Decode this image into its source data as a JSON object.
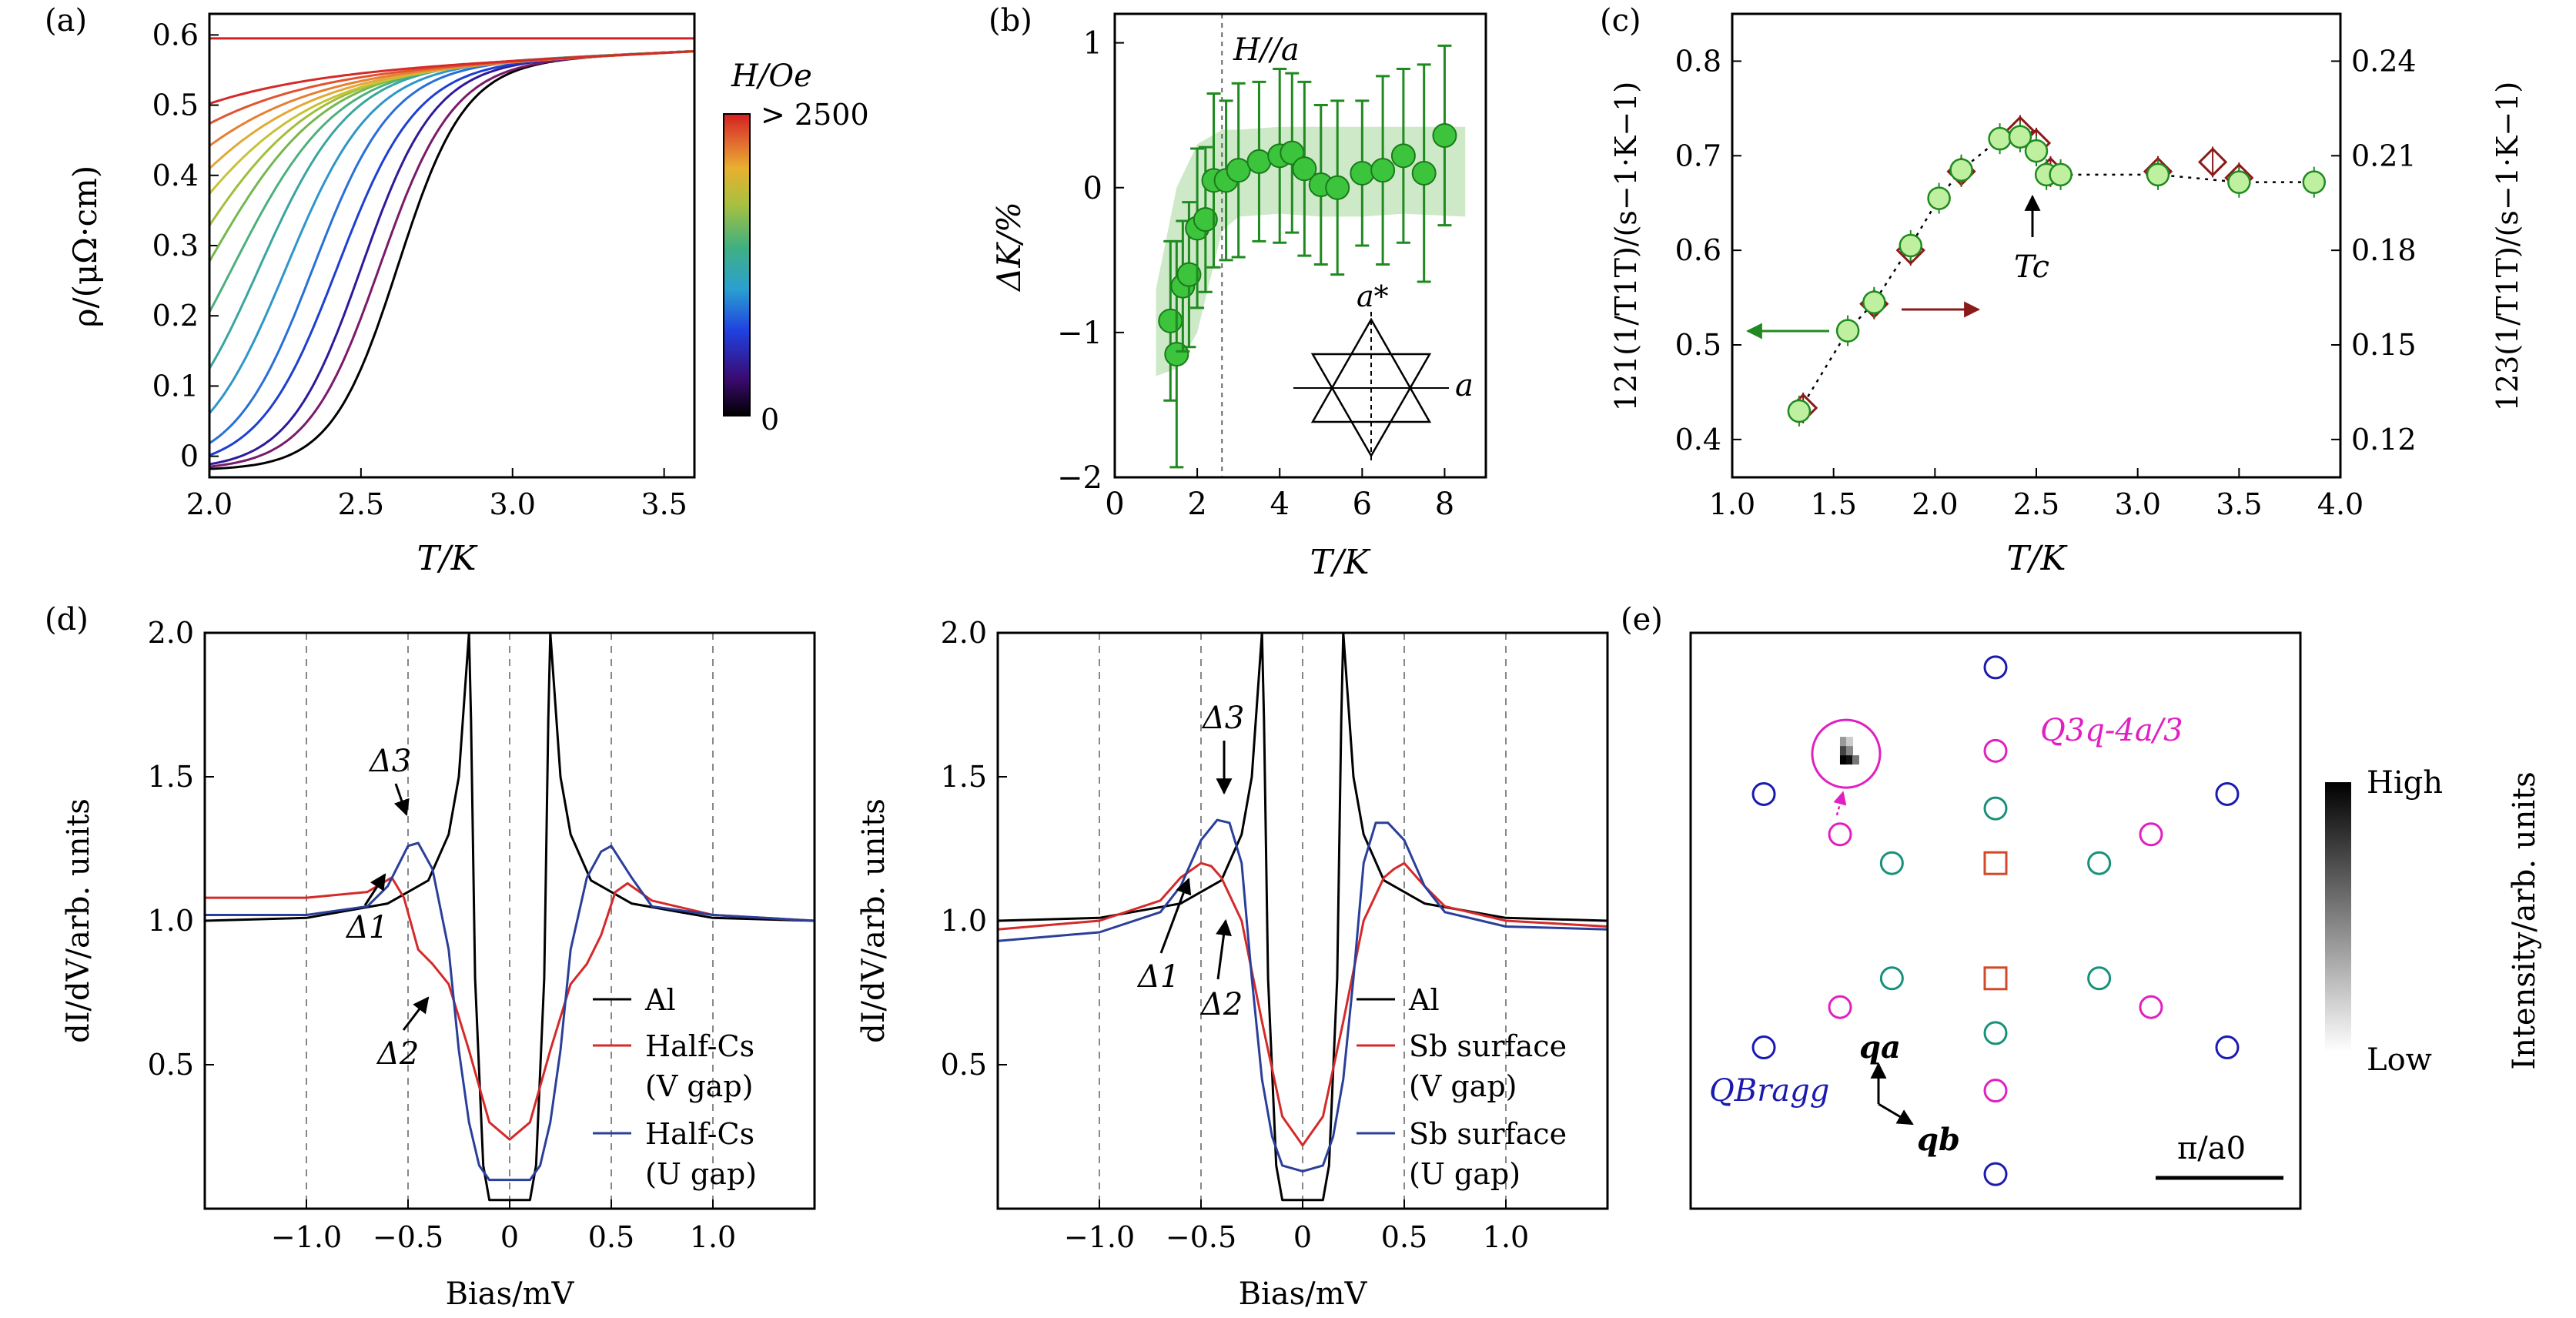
{
  "panels": {
    "a": {
      "tag": "(a)",
      "xlabel": "T/K",
      "ylabel": "ρ/(μΩ·cm)",
      "cbar_title": "H/Oe",
      "cbar_high": "> 2500",
      "cbar_low": "0"
    },
    "b": {
      "tag": "(b)",
      "xlabel": "T/K",
      "ylabel": "ΔK/%",
      "annotation": "H//a",
      "inset_a": "a",
      "inset_astar": "a*"
    },
    "c": {
      "tag": "(c)",
      "xlabel": "T/K",
      "ylabel_left": "121(1/T1T)/(s−1·K−1)",
      "ylabel_right": "123(1/T1T)/(s−1·K−1)",
      "tc_label": "Tc"
    },
    "d1": {
      "tag": "(d)",
      "xlabel": "Bias/mV",
      "ylabel": "dI/dV/arb. units",
      "gap_labels": [
        "Δ3",
        "Δ1",
        "Δ2"
      ],
      "legend": [
        "Al",
        "Half-Cs",
        "(V gap)",
        "Half-Cs",
        "(U gap)"
      ]
    },
    "d2": {
      "xlabel": "Bias/mV",
      "ylabel": "dI/dV/arb. units",
      "gap_labels": [
        "Δ3",
        "Δ1",
        "Δ2"
      ],
      "legend": [
        "Al",
        "Sb surface",
        "(V gap)",
        "Sb surface",
        "(U gap)"
      ]
    },
    "e": {
      "tag": "(e)",
      "q3q_label": "Q3q-4a/3",
      "qbragg_label": "QBragg",
      "qa_label": "qa",
      "qb_label": "qb",
      "scale_label": "π/a0",
      "cbar_title": "Intensity/arb. units",
      "cbar_high": "High",
      "cbar_low": "Low"
    }
  },
  "chart_data": [
    {
      "id": "a",
      "type": "line",
      "xlabel": "T/K",
      "ylabel": "ρ/(μΩ·cm)",
      "xlim": [
        2.0,
        3.6
      ],
      "ylim": [
        -0.03,
        0.63
      ],
      "xticks": [
        2.0,
        2.5,
        3.0,
        3.5
      ],
      "yticks": [
        0,
        0.1,
        0.2,
        0.3,
        0.4,
        0.5,
        0.6
      ],
      "colorbar": {
        "title": "H/Oe",
        "min_label": "0",
        "max_label": "> 2500"
      },
      "series": [
        {
          "color": "#000000",
          "Tc": 2.62,
          "w": 0.11
        },
        {
          "color": "#7a1a6a",
          "Tc": 2.56,
          "w": 0.12
        },
        {
          "color": "#2e1a9a",
          "Tc": 2.5,
          "w": 0.12
        },
        {
          "color": "#1f3fd0",
          "Tc": 2.42,
          "w": 0.13
        },
        {
          "color": "#2a6fd8",
          "Tc": 2.34,
          "w": 0.13
        },
        {
          "color": "#2f96c8",
          "Tc": 2.25,
          "w": 0.14
        },
        {
          "color": "#3aa5a0",
          "Tc": 2.16,
          "w": 0.15
        },
        {
          "color": "#4db07c",
          "Tc": 2.07,
          "w": 0.17
        },
        {
          "color": "#76b650",
          "Tc": 1.98,
          "w": 0.19
        },
        {
          "color": "#a0be3c",
          "Tc": 1.9,
          "w": 0.21
        },
        {
          "color": "#c7c236",
          "Tc": 1.8,
          "w": 0.24
        },
        {
          "color": "#e3a836",
          "Tc": 1.7,
          "w": 0.26
        },
        {
          "color": "#e67f33",
          "Tc": 1.58,
          "w": 0.28
        },
        {
          "color": "#e05430",
          "Tc": 1.42,
          "w": 0.3
        },
        {
          "color": "#d32a2a",
          "Tc": 1.2,
          "w": 0.32
        }
      ],
      "curve_params": {
        "rho_low": -0.02,
        "rho_high_at_2K": 0.545,
        "rho_high_slope": 0.02,
        "top_curve_value": 0.595
      }
    },
    {
      "id": "b",
      "type": "scatter",
      "xlabel": "T/K",
      "ylabel": "ΔK/%",
      "xlim": [
        0,
        9
      ],
      "ylim": [
        -2,
        1.2
      ],
      "xticks": [
        0,
        2,
        4,
        6,
        8
      ],
      "yticks": [
        -2,
        -1,
        0,
        1
      ],
      "vline_x": 2.6,
      "points": [
        {
          "x": 1.35,
          "y": -0.92,
          "err": 0.55
        },
        {
          "x": 1.5,
          "y": -1.15,
          "err": 0.78
        },
        {
          "x": 1.65,
          "y": -0.68,
          "err": 0.45
        },
        {
          "x": 1.8,
          "y": -0.6,
          "err": 0.5
        },
        {
          "x": 2.0,
          "y": -0.28,
          "err": 0.55
        },
        {
          "x": 2.2,
          "y": -0.22,
          "err": 0.5
        },
        {
          "x": 2.4,
          "y": 0.05,
          "err": 0.6
        },
        {
          "x": 2.7,
          "y": 0.05,
          "err": 0.55
        },
        {
          "x": 3.0,
          "y": 0.12,
          "err": 0.6
        },
        {
          "x": 3.5,
          "y": 0.18,
          "err": 0.55
        },
        {
          "x": 4.0,
          "y": 0.22,
          "err": 0.6
        },
        {
          "x": 4.3,
          "y": 0.24,
          "err": 0.55
        },
        {
          "x": 4.6,
          "y": 0.13,
          "err": 0.6
        },
        {
          "x": 5.0,
          "y": 0.02,
          "err": 0.55
        },
        {
          "x": 5.4,
          "y": 0.0,
          "err": 0.6
        },
        {
          "x": 6.0,
          "y": 0.1,
          "err": 0.5
        },
        {
          "x": 6.5,
          "y": 0.12,
          "err": 0.65
        },
        {
          "x": 7.0,
          "y": 0.22,
          "err": 0.6
        },
        {
          "x": 7.5,
          "y": 0.1,
          "err": 0.75
        },
        {
          "x": 8.0,
          "y": 0.36,
          "err": 0.62
        }
      ],
      "band": {
        "x": [
          1.0,
          1.5,
          2.0,
          2.6,
          3.0,
          4.0,
          5.0,
          6.0,
          7.0,
          8.5
        ],
        "lower": [
          -1.3,
          -1.25,
          -1.0,
          -0.3,
          -0.2,
          -0.18,
          -0.2,
          -0.2,
          -0.18,
          -0.2
        ],
        "upper": [
          -0.7,
          0.0,
          0.3,
          0.4,
          0.4,
          0.42,
          0.42,
          0.42,
          0.42,
          0.42
        ]
      }
    },
    {
      "id": "c",
      "type": "scatter",
      "xlabel": "T/K",
      "xlim": [
        1.0,
        4.0
      ],
      "ylim_left": [
        0.36,
        0.85
      ],
      "ylim_right": [
        0.108,
        0.255
      ],
      "xticks": [
        1.0,
        1.5,
        2.0,
        2.5,
        3.0,
        3.5,
        4.0
      ],
      "yticks_left": [
        0.4,
        0.5,
        0.6,
        0.7,
        0.8
      ],
      "yticks_right": [
        0.12,
        0.15,
        0.18,
        0.21,
        0.24
      ],
      "tc": 2.42,
      "series": [
        {
          "name": "121",
          "axis": "left",
          "marker": "circle",
          "color": "#1f8a1f",
          "x": [
            1.33,
            1.57,
            1.7,
            1.88,
            2.02,
            2.13,
            2.32,
            2.42,
            2.5,
            2.55,
            2.62,
            3.1,
            3.5,
            3.87
          ],
          "y": [
            0.43,
            0.515,
            0.545,
            0.605,
            0.655,
            0.685,
            0.718,
            0.72,
            0.705,
            0.68,
            0.68,
            0.68,
            0.672,
            0.672
          ]
        },
        {
          "name": "123",
          "axis": "right",
          "marker": "diamond",
          "color": "#8b1a1a",
          "x": [
            1.35,
            1.7,
            1.88,
            2.13,
            2.42,
            2.5,
            2.57,
            3.1,
            3.37,
            3.5
          ],
          "y": [
            0.13,
            0.163,
            0.18,
            0.205,
            0.218,
            0.214,
            0.205,
            0.205,
            0.208,
            0.203
          ]
        }
      ]
    },
    {
      "id": "d1",
      "type": "line",
      "xlabel": "Bias/mV",
      "ylabel": "dI/dV/arb. units",
      "xlim": [
        -1.5,
        1.5
      ],
      "ylim": [
        0,
        2
      ],
      "xticks": [
        -1.0,
        -0.5,
        0,
        0.5,
        1.0
      ],
      "yticks": [
        0.5,
        1.0,
        1.5,
        2.0
      ],
      "vlines": [
        -1.0,
        -0.5,
        0,
        0.5,
        1.0
      ],
      "series": [
        {
          "name": "Al",
          "color": "#000000",
          "x": [
            -1.5,
            -1.0,
            -0.6,
            -0.4,
            -0.3,
            -0.25,
            -0.22,
            -0.2,
            -0.19,
            -0.17,
            -0.13,
            -0.1,
            0,
            0.1,
            0.13,
            0.17,
            0.19,
            0.2,
            0.22,
            0.25,
            0.3,
            0.4,
            0.6,
            1.0,
            1.5
          ],
          "y": [
            1.0,
            1.01,
            1.06,
            1.14,
            1.3,
            1.5,
            1.8,
            2.0,
            1.7,
            0.8,
            0.15,
            0.03,
            0.03,
            0.03,
            0.15,
            0.8,
            1.7,
            2.0,
            1.8,
            1.5,
            1.3,
            1.14,
            1.06,
            1.01,
            1.0
          ]
        },
        {
          "name": "Half-Cs (V gap)",
          "color": "#d42a2a",
          "x": [
            -1.5,
            -1.0,
            -0.7,
            -0.58,
            -0.52,
            -0.45,
            -0.38,
            -0.3,
            -0.2,
            -0.1,
            0,
            0.1,
            0.2,
            0.3,
            0.38,
            0.45,
            0.52,
            0.58,
            0.7,
            1.0,
            1.5
          ],
          "y": [
            1.08,
            1.08,
            1.1,
            1.15,
            1.08,
            0.9,
            0.85,
            0.78,
            0.55,
            0.3,
            0.24,
            0.3,
            0.55,
            0.78,
            0.85,
            0.95,
            1.1,
            1.13,
            1.07,
            1.02,
            1.0
          ]
        },
        {
          "name": "Half-Cs (U gap)",
          "color": "#2a3f9a",
          "x": [
            -1.5,
            -1.0,
            -0.7,
            -0.6,
            -0.5,
            -0.45,
            -0.38,
            -0.3,
            -0.25,
            -0.2,
            -0.15,
            -0.1,
            0,
            0.1,
            0.15,
            0.2,
            0.25,
            0.3,
            0.38,
            0.45,
            0.5,
            0.6,
            0.7,
            1.0,
            1.5
          ],
          "y": [
            1.02,
            1.02,
            1.05,
            1.12,
            1.26,
            1.27,
            1.18,
            0.9,
            0.55,
            0.3,
            0.15,
            0.1,
            0.1,
            0.1,
            0.15,
            0.3,
            0.55,
            0.9,
            1.15,
            1.24,
            1.26,
            1.15,
            1.05,
            1.02,
            1.0
          ]
        }
      ]
    },
    {
      "id": "d2",
      "type": "line",
      "xlabel": "Bias/mV",
      "ylabel": "dI/dV/arb. units",
      "xlim": [
        -1.5,
        1.5
      ],
      "ylim": [
        0,
        2
      ],
      "xticks": [
        -1.0,
        -0.5,
        0,
        0.5,
        1.0
      ],
      "yticks": [
        0.5,
        1.0,
        1.5,
        2.0
      ],
      "vlines": [
        -1.0,
        -0.5,
        0,
        0.5,
        1.0
      ],
      "series": [
        {
          "name": "Al",
          "color": "#000000",
          "x": [
            -1.5,
            -1.0,
            -0.6,
            -0.4,
            -0.3,
            -0.25,
            -0.22,
            -0.2,
            -0.19,
            -0.17,
            -0.13,
            -0.1,
            0,
            0.1,
            0.13,
            0.17,
            0.19,
            0.2,
            0.22,
            0.25,
            0.3,
            0.4,
            0.6,
            1.0,
            1.5
          ],
          "y": [
            1.0,
            1.01,
            1.06,
            1.14,
            1.3,
            1.5,
            1.8,
            2.0,
            1.7,
            0.8,
            0.15,
            0.03,
            0.03,
            0.03,
            0.15,
            0.8,
            1.7,
            2.0,
            1.8,
            1.5,
            1.3,
            1.14,
            1.06,
            1.01,
            1.0
          ]
        },
        {
          "name": "Sb surface (V gap)",
          "color": "#d42a2a",
          "x": [
            -1.5,
            -1.0,
            -0.7,
            -0.6,
            -0.5,
            -0.45,
            -0.4,
            -0.3,
            -0.2,
            -0.1,
            0,
            0.1,
            0.2,
            0.3,
            0.4,
            0.45,
            0.5,
            0.6,
            0.7,
            1.0,
            1.5
          ],
          "y": [
            0.97,
            1.0,
            1.07,
            1.15,
            1.2,
            1.19,
            1.15,
            1.0,
            0.65,
            0.32,
            0.22,
            0.32,
            0.65,
            1.0,
            1.15,
            1.18,
            1.2,
            1.12,
            1.05,
            1.0,
            0.98
          ]
        },
        {
          "name": "Sb surface (U gap)",
          "color": "#2a3f9a",
          "x": [
            -1.5,
            -1.0,
            -0.7,
            -0.6,
            -0.5,
            -0.42,
            -0.36,
            -0.3,
            -0.25,
            -0.2,
            -0.15,
            -0.1,
            0,
            0.1,
            0.15,
            0.2,
            0.25,
            0.3,
            0.36,
            0.42,
            0.5,
            0.6,
            0.7,
            1.0,
            1.5
          ],
          "y": [
            0.93,
            0.96,
            1.03,
            1.12,
            1.28,
            1.35,
            1.34,
            1.2,
            0.8,
            0.45,
            0.25,
            0.15,
            0.13,
            0.15,
            0.25,
            0.45,
            0.8,
            1.2,
            1.34,
            1.34,
            1.28,
            1.12,
            1.03,
            0.98,
            0.97
          ]
        }
      ]
    },
    {
      "id": "e",
      "type": "scatter",
      "xlim": [
        -1,
        1
      ],
      "ylim": [
        -1,
        1
      ],
      "points": [
        {
          "x": 0,
          "y": 0.88,
          "color": "#1a1ab0",
          "shape": "circle"
        },
        {
          "x": 0,
          "y": -0.88,
          "color": "#1a1ab0",
          "shape": "circle"
        },
        {
          "x": -0.76,
          "y": 0.44,
          "color": "#1a1ab0",
          "shape": "circle"
        },
        {
          "x": 0.76,
          "y": 0.44,
          "color": "#1a1ab0",
          "shape": "circle"
        },
        {
          "x": -0.76,
          "y": -0.44,
          "color": "#1a1ab0",
          "shape": "circle"
        },
        {
          "x": 0.76,
          "y": -0.44,
          "color": "#1a1ab0",
          "shape": "circle"
        },
        {
          "x": 0,
          "y": 0.59,
          "color": "#e020c0",
          "shape": "circle"
        },
        {
          "x": 0,
          "y": -0.59,
          "color": "#e020c0",
          "shape": "circle"
        },
        {
          "x": -0.51,
          "y": 0.3,
          "color": "#e020c0",
          "shape": "circle"
        },
        {
          "x": 0.51,
          "y": 0.3,
          "color": "#e020c0",
          "shape": "circle"
        },
        {
          "x": -0.51,
          "y": -0.3,
          "color": "#e020c0",
          "shape": "circle"
        },
        {
          "x": 0.51,
          "y": -0.3,
          "color": "#e020c0",
          "shape": "circle"
        },
        {
          "x": 0,
          "y": 0.39,
          "color": "#17917a",
          "shape": "circle"
        },
        {
          "x": 0,
          "y": -0.39,
          "color": "#17917a",
          "shape": "circle"
        },
        {
          "x": -0.34,
          "y": 0.2,
          "color": "#17917a",
          "shape": "circle"
        },
        {
          "x": 0.34,
          "y": 0.2,
          "color": "#17917a",
          "shape": "circle"
        },
        {
          "x": -0.34,
          "y": -0.2,
          "color": "#17917a",
          "shape": "circle"
        },
        {
          "x": 0.34,
          "y": -0.2,
          "color": "#17917a",
          "shape": "circle"
        },
        {
          "x": 0,
          "y": 0.2,
          "color": "#d04a2a",
          "shape": "square"
        },
        {
          "x": 0,
          "y": -0.2,
          "color": "#d04a2a",
          "shape": "square"
        }
      ],
      "highlight": {
        "x": -0.49,
        "y": 0.58,
        "color": "#e020c0"
      },
      "colorbar": {
        "title": "Intensity/arb. units",
        "min_label": "Low",
        "max_label": "High"
      }
    }
  ]
}
